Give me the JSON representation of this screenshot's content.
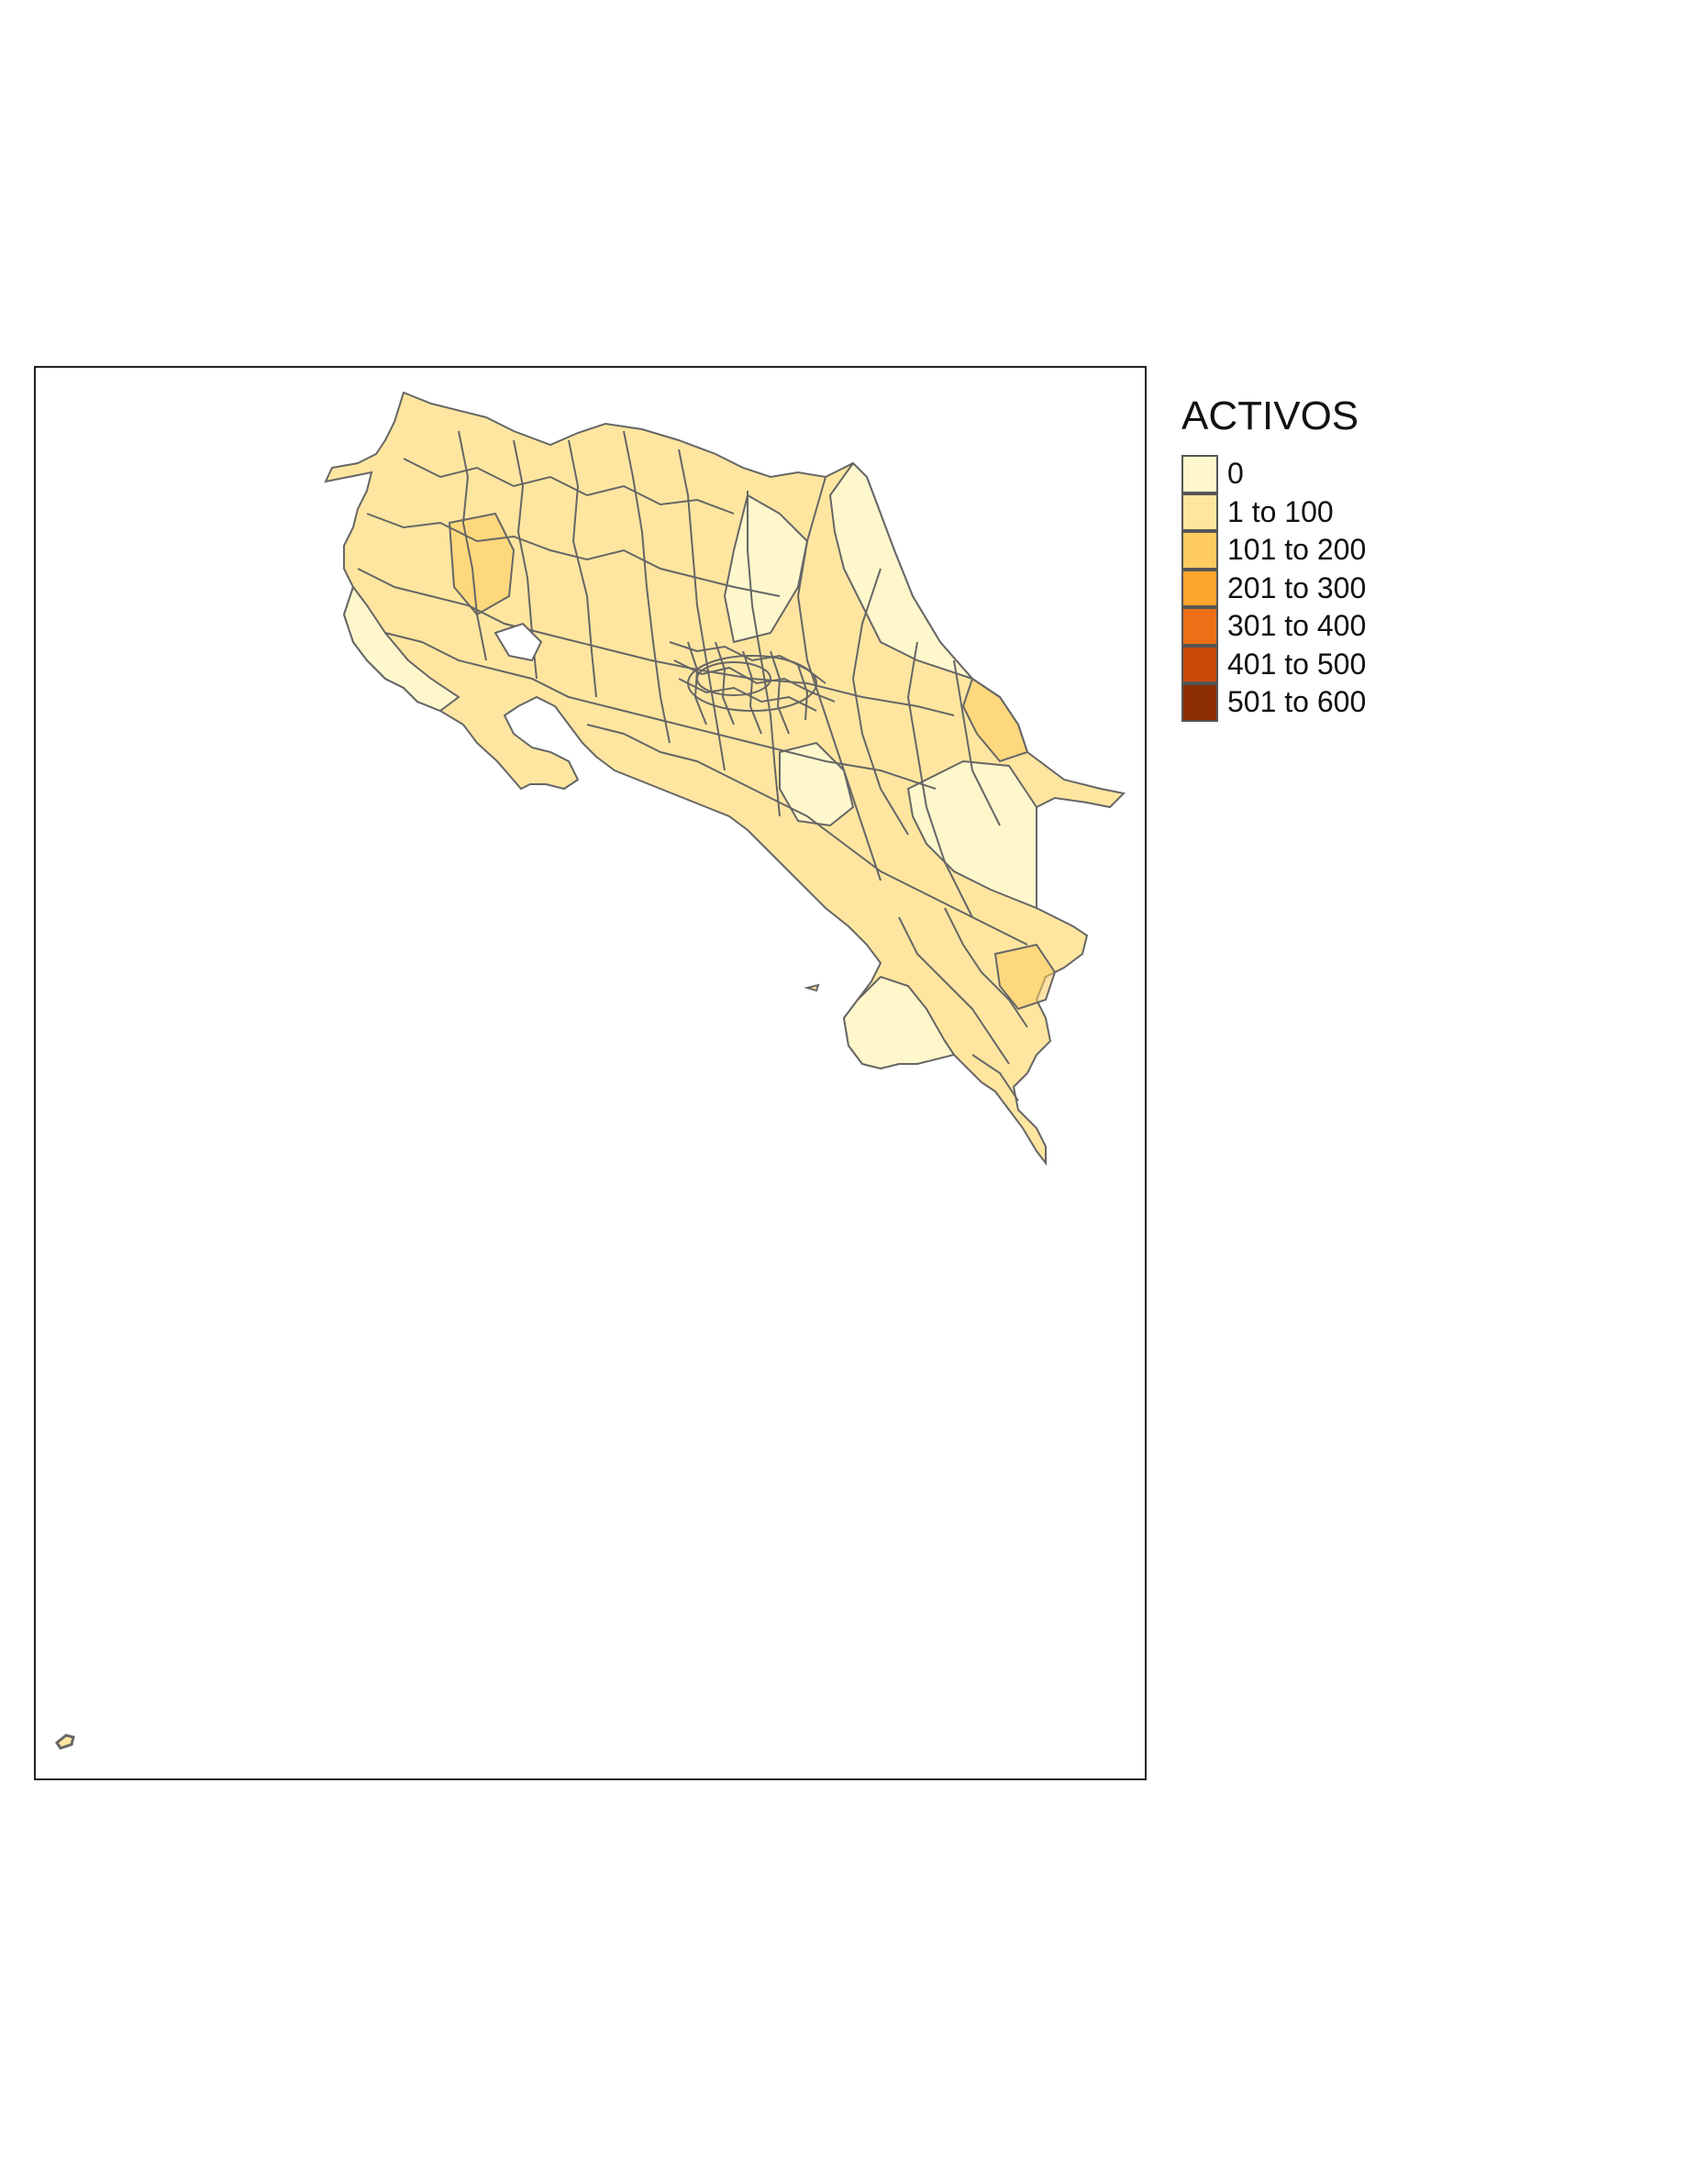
{
  "legend": {
    "title": "ACTIVOS",
    "classes": [
      {
        "label": "0",
        "color": "#FFF7CC"
      },
      {
        "label": "1 to 100",
        "color": "#FEE6A0"
      },
      {
        "label": "101 to 200",
        "color": "#FECC60"
      },
      {
        "label": "201 to 300",
        "color": "#FCA52C"
      },
      {
        "label": "301 to 400",
        "color": "#EE7016"
      },
      {
        "label": "401 to 500",
        "color": "#C84A06"
      },
      {
        "label": "501 to 600",
        "color": "#8C2D04"
      }
    ]
  },
  "map": {
    "region": "Costa Rica districts",
    "border_color": "#666666"
  }
}
